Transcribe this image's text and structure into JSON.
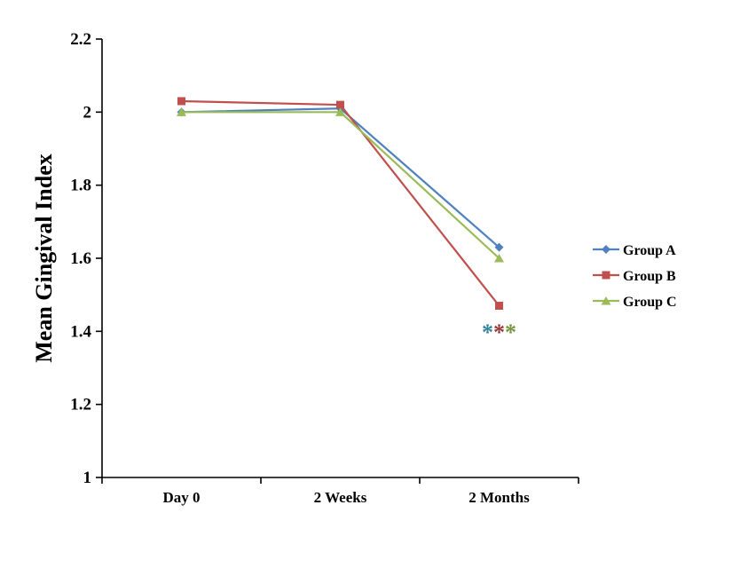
{
  "chart_data": {
    "type": "line",
    "title": "",
    "ylabel": "Mean Gingival Index",
    "xlabel": "",
    "categories": [
      "Day 0",
      "2 Weeks",
      "2 Months"
    ],
    "ylim": [
      1,
      2.2
    ],
    "yticks": [
      1,
      1.2,
      1.4,
      1.6,
      1.8,
      2,
      2.2
    ],
    "ytick_labels": [
      "1",
      "1.2",
      "1.4",
      "1.6",
      "1.8",
      "2",
      "2.2"
    ],
    "grid": false,
    "legend_position": "right",
    "series": [
      {
        "name": "Group A",
        "marker": "diamond",
        "color": "#4F81BD",
        "values": [
          2.0,
          2.01,
          1.63
        ]
      },
      {
        "name": "Group B",
        "marker": "square",
        "color": "#C0504D",
        "values": [
          2.03,
          2.02,
          1.47
        ]
      },
      {
        "name": "Group C",
        "marker": "triangle",
        "color": "#9BBB59",
        "values": [
          2.0,
          2.0,
          1.6
        ]
      }
    ],
    "annotations": [
      {
        "text": "*",
        "x_category": "2 Months",
        "y": 1.41,
        "color": "#31849B"
      },
      {
        "text": "*",
        "x_category": "2 Months",
        "y": 1.41,
        "color": "#953735"
      },
      {
        "text": "*",
        "x_category": "2 Months",
        "y": 1.41,
        "color": "#77933C"
      }
    ]
  }
}
